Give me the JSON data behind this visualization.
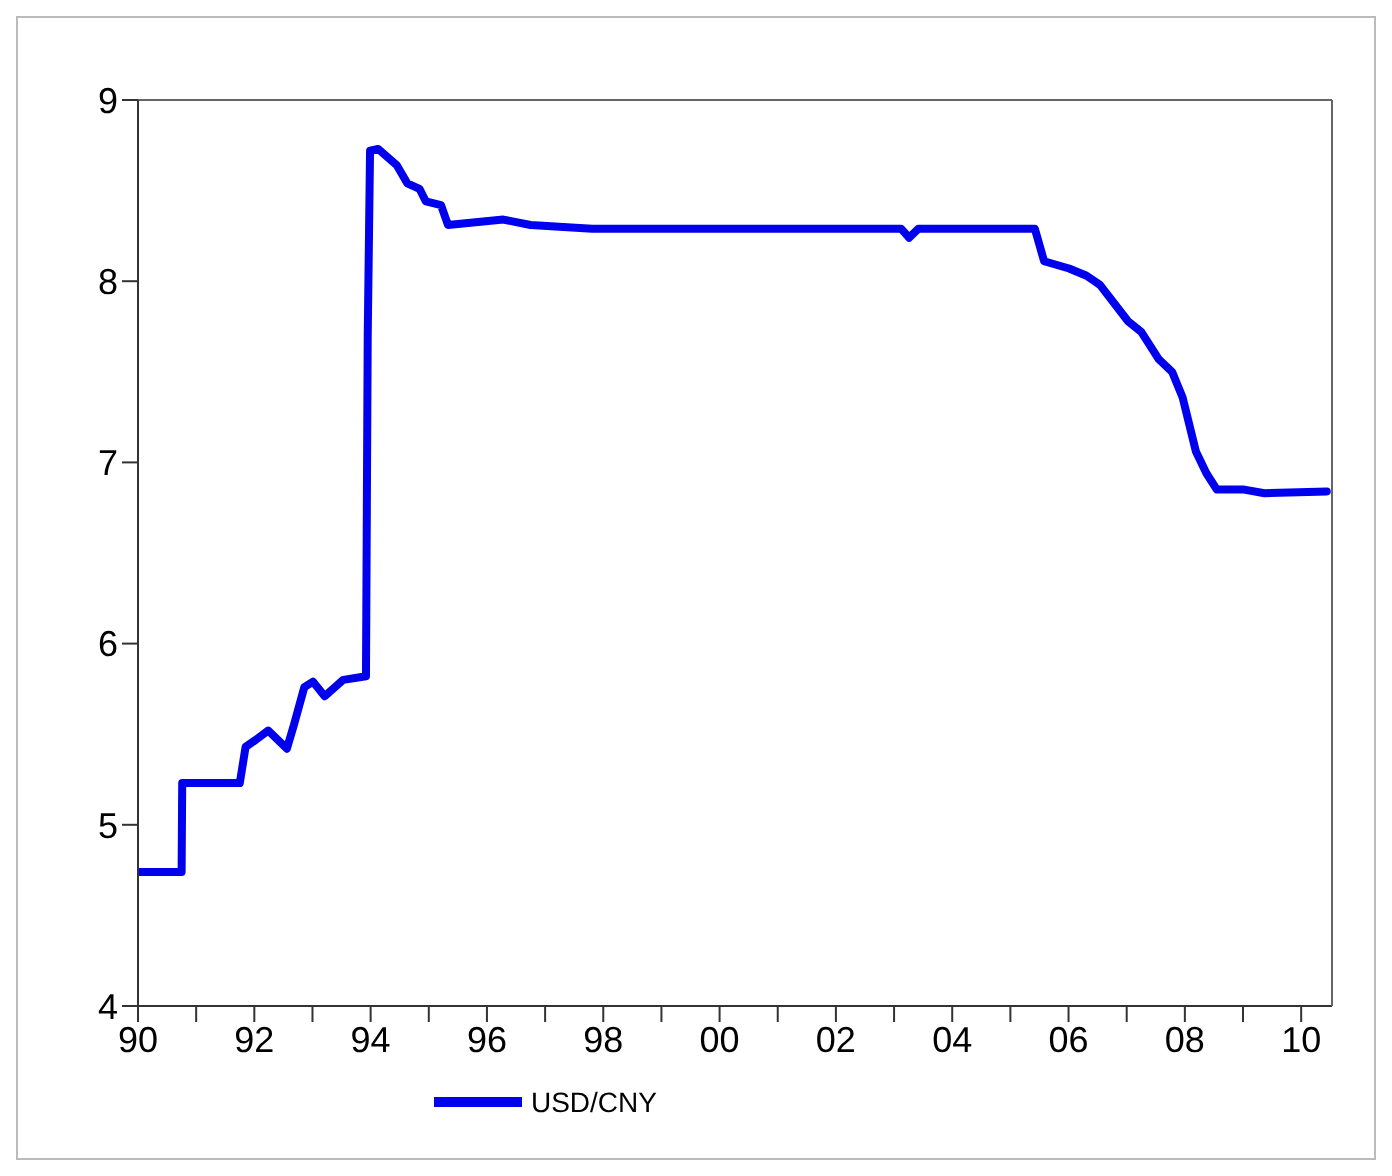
{
  "chart_data": {
    "type": "line",
    "xlim": [
      1990,
      2010.53
    ],
    "ylim": [
      4,
      9
    ],
    "yticks": [
      4,
      5,
      6,
      7,
      8,
      9
    ],
    "xticks": [
      {
        "value": 1990,
        "label": "90"
      },
      {
        "value": 1991,
        "label": null
      },
      {
        "value": 1992,
        "label": "92"
      },
      {
        "value": 1993,
        "label": null
      },
      {
        "value": 1994,
        "label": "94"
      },
      {
        "value": 1995,
        "label": null
      },
      {
        "value": 1996,
        "label": "96"
      },
      {
        "value": 1997,
        "label": null
      },
      {
        "value": 1998,
        "label": "98"
      },
      {
        "value": 1999,
        "label": null
      },
      {
        "value": 2000,
        "label": "00"
      },
      {
        "value": 2001,
        "label": null
      },
      {
        "value": 2002,
        "label": "02"
      },
      {
        "value": 2003,
        "label": null
      },
      {
        "value": 2004,
        "label": "04"
      },
      {
        "value": 2005,
        "label": null
      },
      {
        "value": 2006,
        "label": "06"
      },
      {
        "value": 2007,
        "label": null
      },
      {
        "value": 2008,
        "label": "08"
      },
      {
        "value": 2009,
        "label": null
      },
      {
        "value": 2010,
        "label": "10"
      }
    ],
    "grid": false,
    "legend": "bottom",
    "marker": "none",
    "line_style": "solid",
    "series": [
      {
        "name": "USD/CNY",
        "color": "#0000ee",
        "x": [
          1990,
          1990.75,
          1990.76,
          1991.75,
          1991.85,
          1992.03,
          1992.24,
          1992.56,
          1992.68,
          1992.86,
          1993.01,
          1993.21,
          1993.53,
          1993.92,
          1993.95,
          1993.99,
          1994.13,
          1994.45,
          1994.63,
          1994.84,
          1994.95,
          1995.21,
          1995.33,
          1996.28,
          1996.75,
          1997.81,
          2003.12,
          2003.26,
          2003.42,
          2005.42,
          2005.58,
          2006.01,
          2006.31,
          2006.54,
          2007.02,
          2007.25,
          2007.55,
          2007.78,
          2007.96,
          2008.19,
          2008.37,
          2008.55,
          2009.02,
          2009.37,
          2010.44
        ],
        "values": [
          4.74,
          4.74,
          5.23,
          5.23,
          5.43,
          5.47,
          5.52,
          5.42,
          5.55,
          5.76,
          5.79,
          5.71,
          5.8,
          5.82,
          7.7,
          8.72,
          8.73,
          8.64,
          8.54,
          8.51,
          8.44,
          8.42,
          8.31,
          8.34,
          8.31,
          8.29,
          8.29,
          8.24,
          8.29,
          8.29,
          8.11,
          8.07,
          8.03,
          7.98,
          7.78,
          7.72,
          7.57,
          7.5,
          7.36,
          7.06,
          6.94,
          6.85,
          6.85,
          6.83,
          6.84
        ]
      }
    ]
  }
}
